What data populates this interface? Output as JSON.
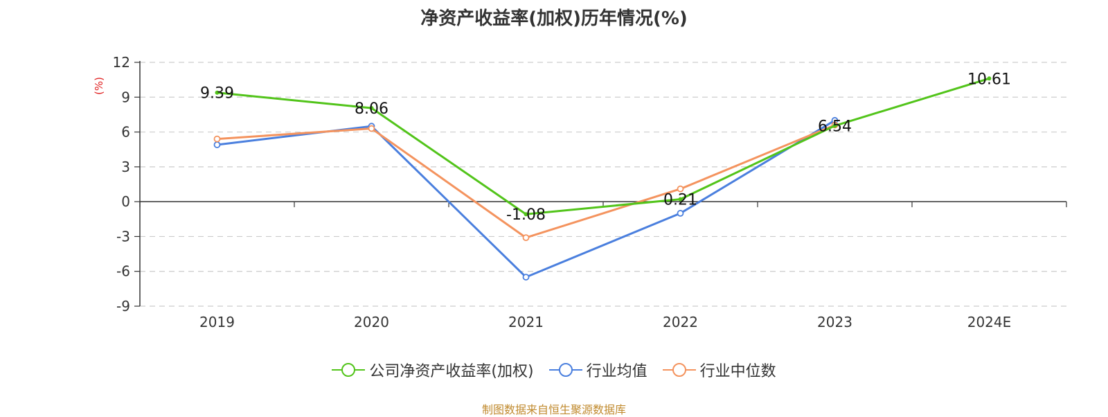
{
  "source": "制图数据来自恒生聚源数据库",
  "colors": {
    "company": "#52c41a",
    "industry_avg": "#4a7fde",
    "industry_median": "#f4935e",
    "unit": "#e02020",
    "source": "#c08a2e"
  },
  "chart_data": {
    "type": "line",
    "title": "净资产收益率(加权)历年情况(%)",
    "ylabel": "(%)",
    "xlabel": "",
    "categories": [
      "2019",
      "2020",
      "2021",
      "2022",
      "2023",
      "2024E"
    ],
    "ylim": [
      -9,
      12
    ],
    "yticks": [
      12,
      9,
      6,
      3,
      0,
      -3,
      -6,
      -9
    ],
    "grid": true,
    "legend_position": "bottom",
    "series": [
      {
        "name": "公司净资产收益率(加权)",
        "key": "company",
        "values": [
          9.39,
          8.06,
          -1.08,
          0.21,
          6.54,
          10.61
        ],
        "labels": [
          "9.39",
          "8.06",
          "-1.08",
          "0.21",
          "6.54",
          "10.61"
        ]
      },
      {
        "name": "行业均值",
        "key": "industry_avg",
        "values": [
          4.9,
          6.5,
          -6.5,
          -1.0,
          7.0,
          null
        ]
      },
      {
        "name": "行业中位数",
        "key": "industry_median",
        "values": [
          5.4,
          6.3,
          -3.1,
          1.1,
          6.6,
          null
        ]
      }
    ]
  }
}
